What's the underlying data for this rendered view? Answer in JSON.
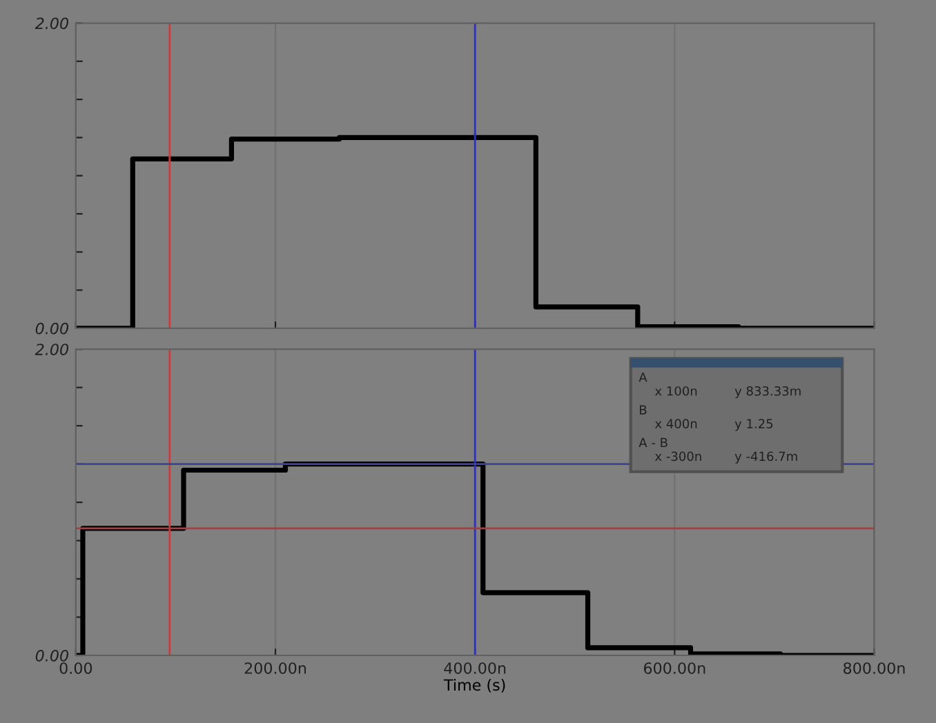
{
  "chart_data": [
    {
      "type": "step",
      "x": [
        0,
        57,
        156,
        264,
        461,
        563,
        664,
        800
      ],
      "series": [
        {
          "color": "#000000",
          "values": [
            0,
            1.11,
            1.24,
            1.25,
            0.14,
            0.01,
            0,
            0
          ]
        }
      ],
      "xlim": [
        0,
        800
      ],
      "ylim": [
        0,
        2
      ],
      "yticks": [
        {
          "value": 0,
          "label": "0.00"
        },
        {
          "value": 0.25,
          "label": null
        },
        {
          "value": 0.5,
          "label": null
        },
        {
          "value": 0.75,
          "label": null
        },
        {
          "value": 1,
          "label": null
        },
        {
          "value": 1.25,
          "label": null
        },
        {
          "value": 1.5,
          "label": null
        },
        {
          "value": 1.75,
          "label": null
        },
        {
          "value": 2,
          "label": "2.00"
        }
      ],
      "xticks": [
        {
          "value": 0,
          "label": null
        },
        {
          "value": 200,
          "label": null
        },
        {
          "value": 400,
          "label": null
        },
        {
          "value": 600,
          "label": null
        },
        {
          "value": 800,
          "label": null
        }
      ],
      "tick_labels": "y",
      "grid": "x",
      "ref_lines": [
        {
          "axis": "x",
          "value": 94,
          "color": "#c04040"
        },
        {
          "axis": "x",
          "value": 400,
          "color": "#3030c0"
        }
      ]
    },
    {
      "type": "step",
      "x": [
        0,
        7,
        108,
        210,
        408,
        513,
        616,
        706,
        800
      ],
      "series": [
        {
          "color": "#000000",
          "values": [
            0,
            0.83,
            1.21,
            1.25,
            0.41,
            0.05,
            0.01,
            0,
            0
          ]
        }
      ],
      "xlim": [
        0,
        800
      ],
      "ylim": [
        0,
        2
      ],
      "yticks": [
        {
          "value": 0,
          "label": "0.00"
        },
        {
          "value": 0.25,
          "label": null
        },
        {
          "value": 0.5,
          "label": null
        },
        {
          "value": 0.75,
          "label": null
        },
        {
          "value": 1,
          "label": null
        },
        {
          "value": 1.25,
          "label": null
        },
        {
          "value": 1.5,
          "label": null
        },
        {
          "value": 1.75,
          "label": null
        },
        {
          "value": 2,
          "label": "2.00"
        }
      ],
      "xticks": [
        {
          "value": 0,
          "label": "0.00"
        },
        {
          "value": 200,
          "label": "200.00n"
        },
        {
          "value": 400,
          "label": "400.00n"
        },
        {
          "value": 600,
          "label": "600.00n"
        },
        {
          "value": 800,
          "label": "800.00n"
        }
      ],
      "xlabel": "Time (s)",
      "grid": "x",
      "ref_lines": [
        {
          "axis": "x",
          "value": 94,
          "color": "#c04040"
        },
        {
          "axis": "x",
          "value": 400,
          "color": "#3030c0"
        },
        {
          "axis": "y",
          "value": 0.83,
          "color": "#a04040"
        },
        {
          "axis": "y",
          "value": 1.25,
          "color": "#4040a0"
        }
      ],
      "annotations": [
        "A",
        "x 100n",
        "y 833.33m",
        "B",
        "x 400n",
        "y 1.25",
        "A - B",
        "x -300n",
        "y -416.7m"
      ]
    }
  ]
}
